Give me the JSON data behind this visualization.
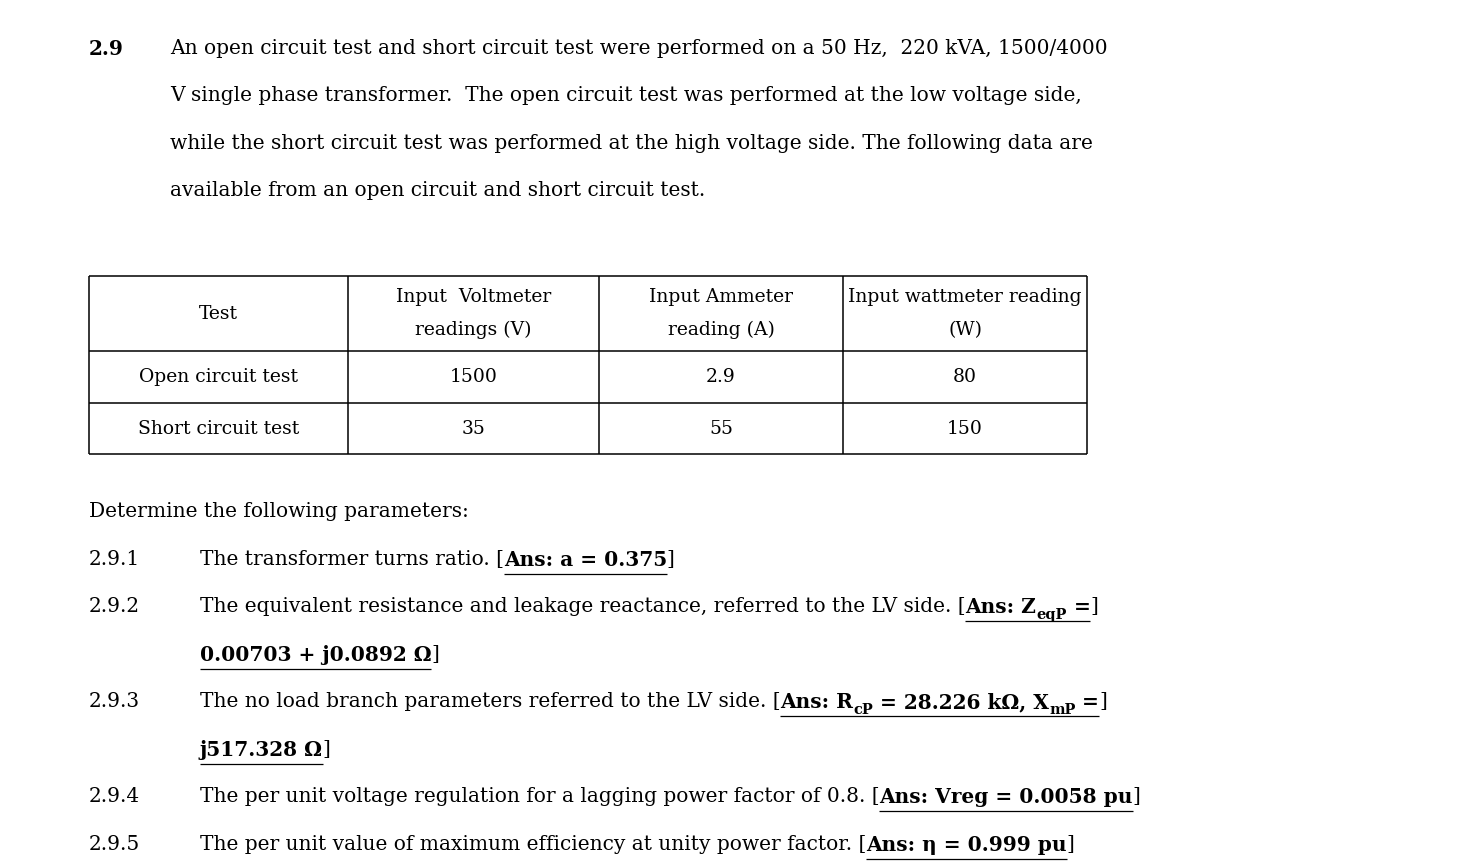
{
  "background_color": "#ffffff",
  "figsize": [
    14.79,
    8.64
  ],
  "dpi": 100,
  "problem_number": "2.9",
  "intro_line1": "An open circuit test and short circuit test were performed on a 50 Hz,  220 kVA, 1500/4000",
  "intro_line2": "V single phase transformer.  The open circuit test was performed at the low voltage side,",
  "intro_line3": "while the short circuit test was performed at the high voltage side. The following data are",
  "intro_line4": "available from an open circuit and short circuit test.",
  "table_headers": [
    "Test",
    "Input  Voltmeter\nreadings (V)",
    "Input Ammeter\nreading (A)",
    "Input wattmeter reading\n(W)"
  ],
  "table_rows": [
    [
      "Open circuit test",
      "1500",
      "2.9",
      "80"
    ],
    [
      "Short circuit test",
      "35",
      "55",
      "150"
    ]
  ],
  "determine_text": "Determine the following parameters:",
  "fs_main": 14.5,
  "fs_table": 13.5
}
